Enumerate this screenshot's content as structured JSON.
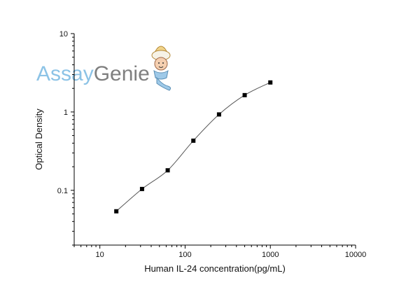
{
  "colors": {
    "logo_assay": "#8cc3e6",
    "logo_genie": "#7f7f7f",
    "axis": "#000000",
    "curve": "#555555",
    "marker": "#000000"
  },
  "logo": {
    "assay_text": "Assay",
    "genie_text": "Genie",
    "mascot": "genie-mascot-icon"
  },
  "chart_data": {
    "type": "scatter",
    "xlabel": "Human IL-24 concentration(pg/mL)",
    "ylabel": "Optical Density",
    "xscale": "log",
    "yscale": "log",
    "xlim": [
      5,
      10000
    ],
    "ylim": [
      0.02,
      10
    ],
    "x_ticks": [
      {
        "value": 10,
        "label": "10"
      },
      {
        "value": 100,
        "label": "100"
      },
      {
        "value": 1000,
        "label": "1000"
      },
      {
        "value": 10000,
        "label": "10000"
      }
    ],
    "y_ticks": [
      {
        "value": 0.1,
        "label": "0.1"
      },
      {
        "value": 1,
        "label": "1"
      },
      {
        "value": 10,
        "label": "10"
      }
    ],
    "series": [
      {
        "x": [
          15.6,
          31.25,
          62.5,
          125,
          250,
          500,
          1000
        ],
        "y": [
          0.054,
          0.104,
          0.18,
          0.43,
          0.93,
          1.64,
          2.38
        ]
      }
    ],
    "fit_curve": true,
    "grid": false,
    "legend": "none"
  }
}
